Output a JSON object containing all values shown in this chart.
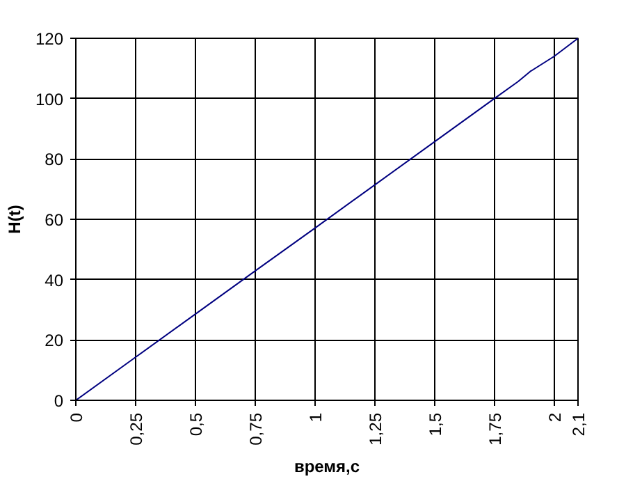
{
  "chart_data": {
    "type": "line",
    "xlabel": "время,с",
    "ylabel": "H(t)",
    "x": [
      0,
      0.25,
      0.5,
      0.75,
      1,
      1.25,
      1.5,
      1.75,
      1.85,
      1.9,
      2,
      2.05,
      2.1
    ],
    "series": [
      {
        "color": "#000080",
        "values": [
          0,
          14.3,
          28.6,
          42.9,
          57.1,
          71.4,
          85.7,
          100,
          105.7,
          109,
          114,
          117,
          120
        ]
      }
    ],
    "xlim": [
      0,
      2.1
    ],
    "ylim": [
      0,
      120
    ],
    "xticks": [
      0,
      {
        "value": 0.25,
        "label": "0,25"
      },
      {
        "value": 0.5,
        "label": "0,5"
      },
      {
        "value": 0.75,
        "label": "0,75"
      },
      1,
      {
        "value": 1.25,
        "label": "1,25"
      },
      {
        "value": 1.5,
        "label": "1,5"
      },
      {
        "value": 1.75,
        "label": "1,75"
      },
      2,
      {
        "value": 2.1,
        "label": "2,1"
      }
    ],
    "yticks": [
      0,
      20,
      40,
      60,
      80,
      100,
      120
    ],
    "grid": true,
    "marker": "none",
    "line_style": "solid"
  }
}
